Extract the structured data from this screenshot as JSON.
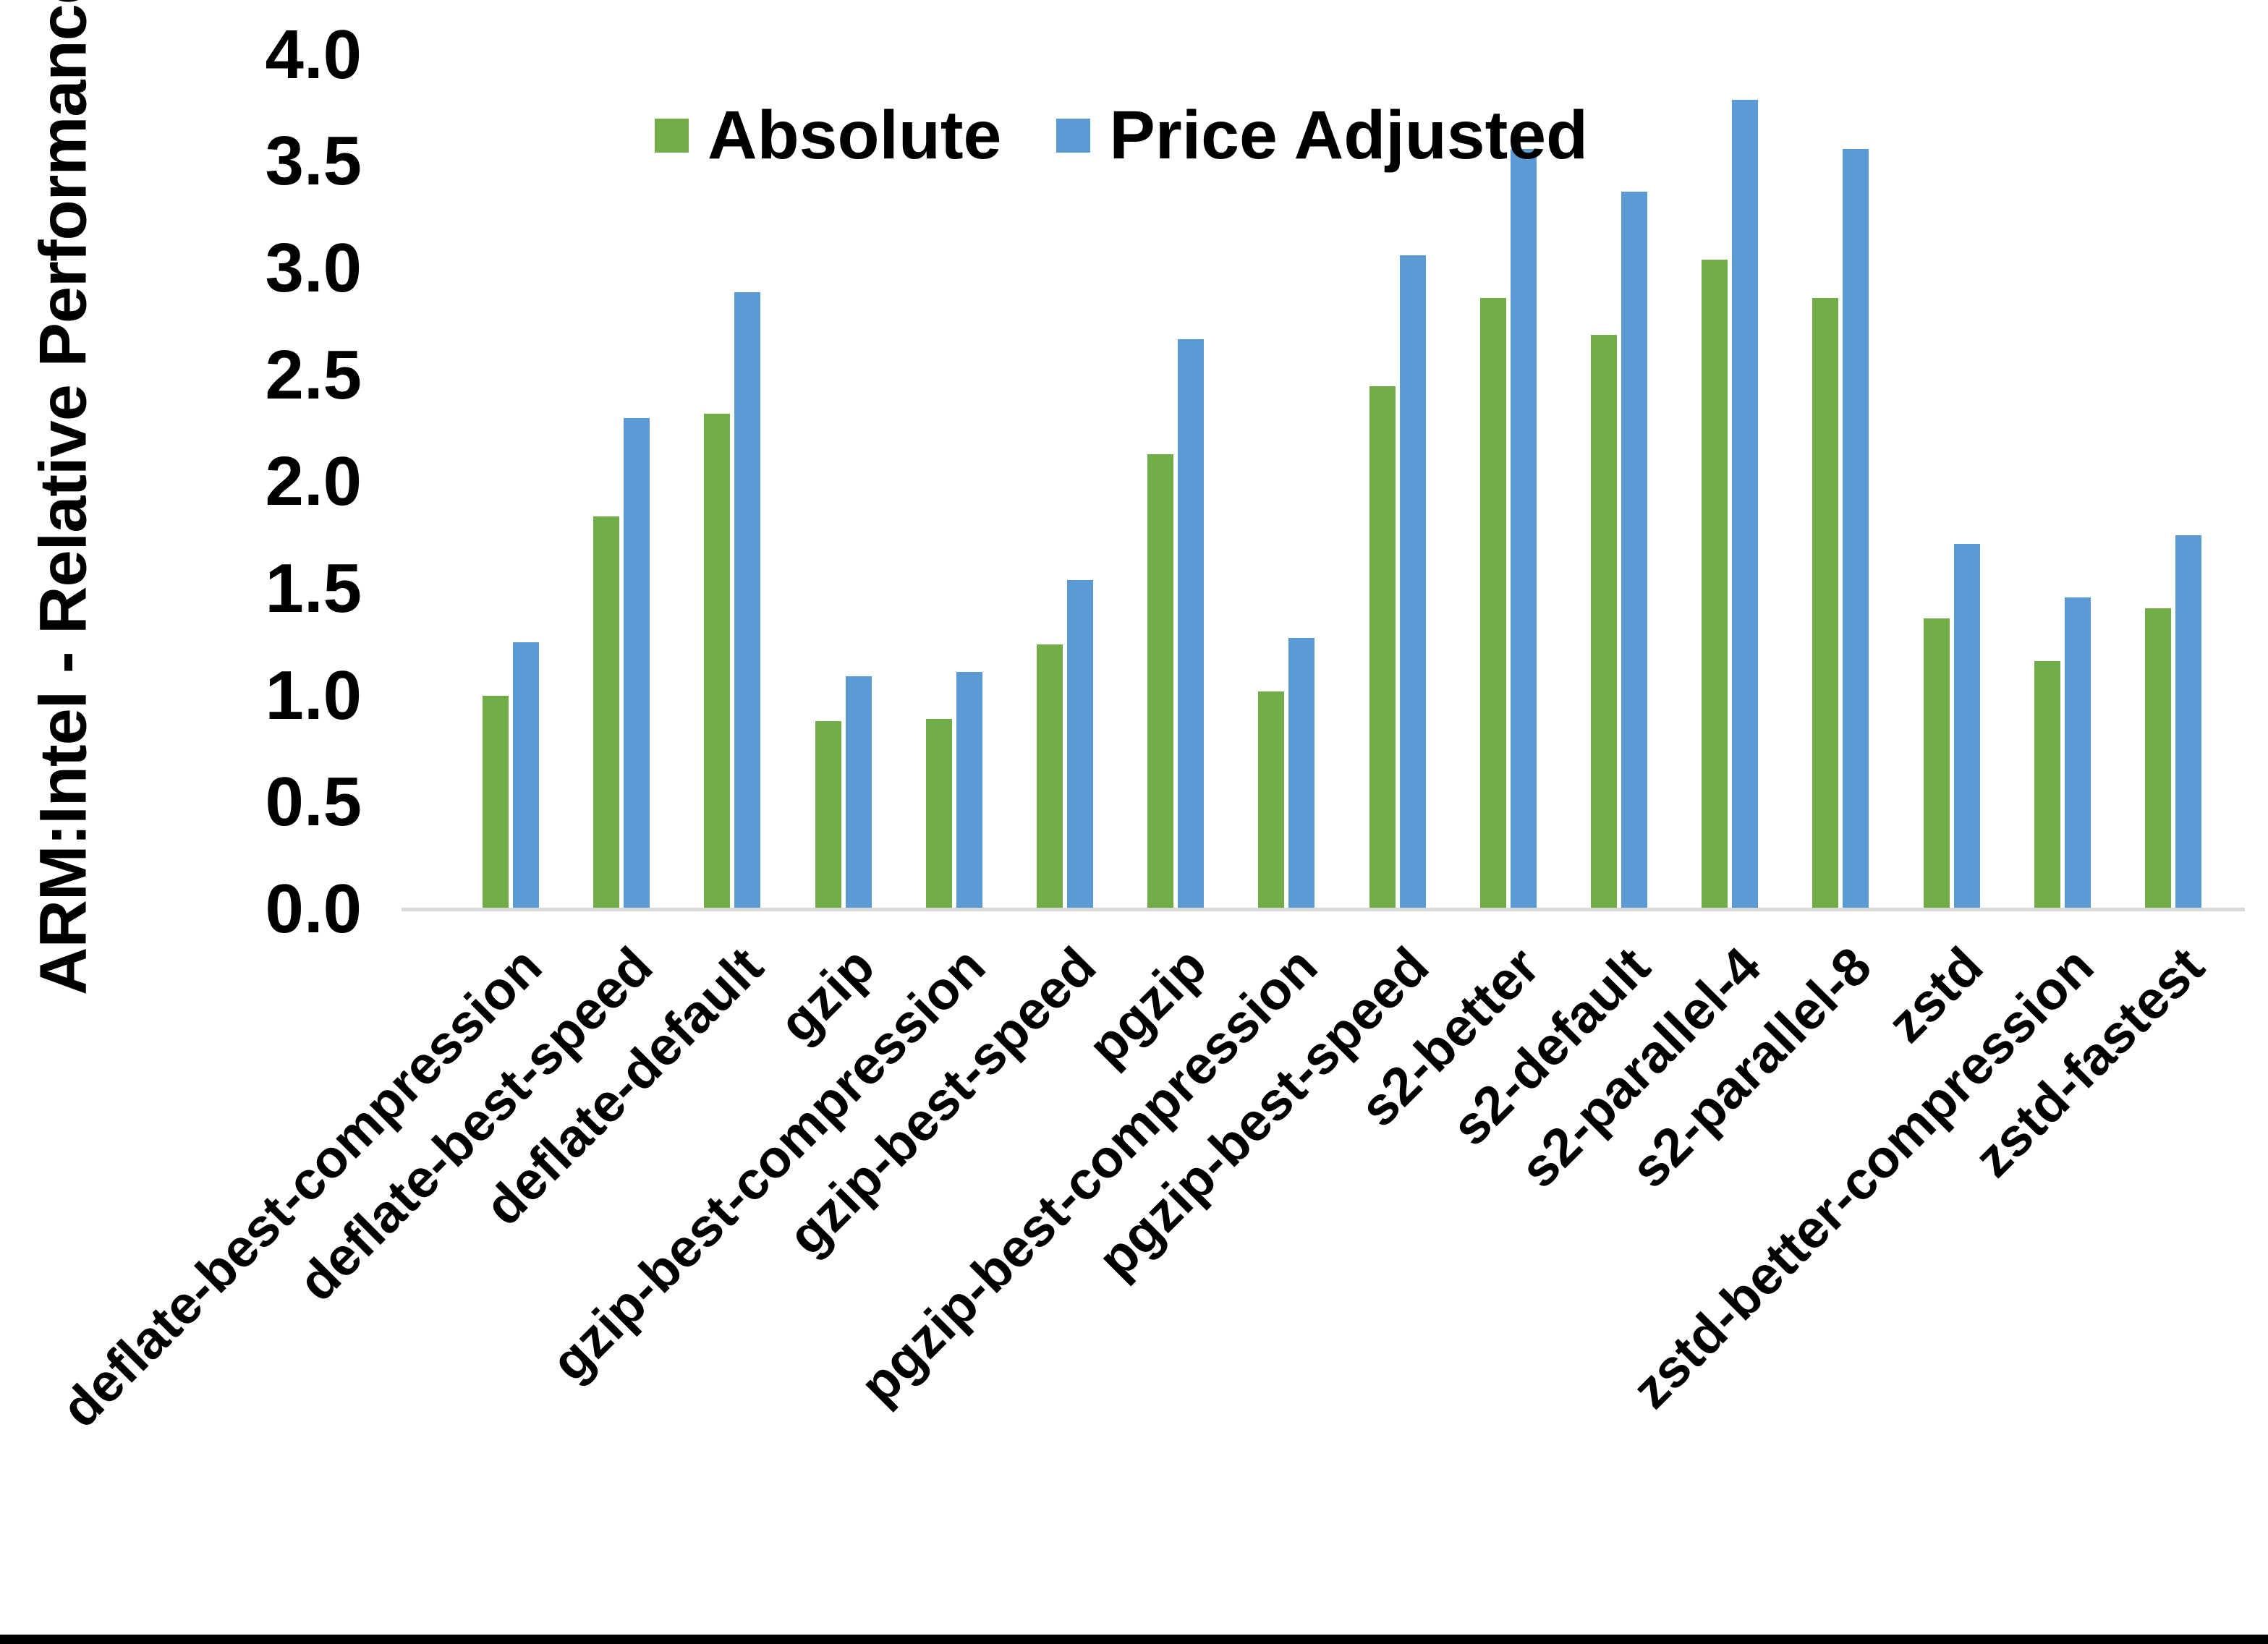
{
  "chart_data": {
    "type": "bar",
    "title": "",
    "ylabel": "ARM:Intel - Relative Performance",
    "xlabel": "",
    "ylim": [
      0.0,
      4.0
    ],
    "ytick_step": 0.5,
    "ytick_labels": [
      "0.0",
      "0.5",
      "1.0",
      "1.5",
      "2.0",
      "2.5",
      "3.0",
      "3.5",
      "4.0"
    ],
    "grid": "off",
    "legend_position": "top-inside-left-of-center",
    "axis_line_color": "#d9d9d9",
    "categories": [
      "deflate-best-compression",
      "deflate-best-speed",
      "deflate-default",
      "gzip",
      "gzip-best-compression",
      "gzip-best-speed",
      "pgzip",
      "pgzip-best-compression",
      "pgzip-best-speed",
      "s2-better",
      "s2-default",
      "s2-parallel-4",
      "s2-parallel-8",
      "zstd",
      "zstd-better-compression",
      "zstd-fastest"
    ],
    "series": [
      {
        "name": "Absolute",
        "color": "#70AD47",
        "values": [
          1.0,
          1.84,
          2.32,
          0.88,
          0.89,
          1.24,
          2.13,
          1.02,
          2.45,
          2.86,
          2.69,
          3.04,
          2.86,
          1.36,
          1.16,
          1.41
        ]
      },
      {
        "name": "Price Adjusted",
        "color": "#5B9BD5",
        "values": [
          1.25,
          2.3,
          2.89,
          1.09,
          1.11,
          1.54,
          2.67,
          1.27,
          3.06,
          3.56,
          3.36,
          3.79,
          3.56,
          1.71,
          1.46,
          1.75
        ]
      }
    ]
  }
}
